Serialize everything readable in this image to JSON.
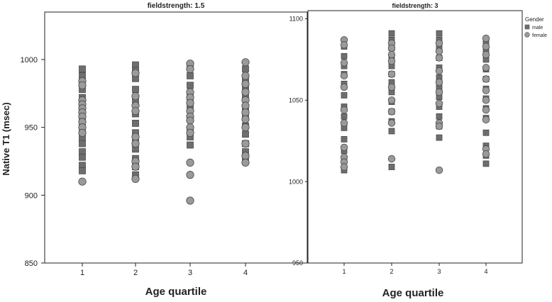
{
  "chart_data": [
    {
      "type": "scatter",
      "title": "fieldstrength: 1.5",
      "xlabel": "Age quartile",
      "ylabel": "Native T1 (msec)",
      "categories": [
        "1",
        "2",
        "3",
        "4"
      ],
      "ylim": [
        850,
        1035
      ],
      "yticks": [
        "850",
        "900",
        "950",
        "1000"
      ],
      "grid": false,
      "series": [
        {
          "name": "male",
          "marker": "square",
          "color": "#6e6e6e",
          "points": [
            {
              "x": "1",
              "y": [
                993,
                988,
                978,
                972,
                965,
                958,
                950,
                942,
                938,
                932,
                928,
                922,
                918
              ]
            },
            {
              "x": "2",
              "y": [
                996,
                992,
                986,
                978,
                969,
                960,
                953,
                946,
                940,
                934,
                927,
                921,
                915
              ]
            },
            {
              "x": "3",
              "y": [
                994,
                988,
                981,
                972,
                965,
                957,
                949,
                943,
                937
              ]
            },
            {
              "x": "4",
              "y": [
                993,
                986,
                980,
                972,
                965,
                958,
                951,
                945,
                938,
                932,
                926
              ]
            }
          ]
        },
        {
          "name": "female",
          "marker": "circle",
          "color": "#9a9a9a",
          "points": [
            {
              "x": "1",
              "y": [
                984,
                981,
                970,
                967,
                964,
                961,
                958,
                954,
                950,
                946,
                910
              ]
            },
            {
              "x": "2",
              "y": [
                990,
                973,
                966,
                962,
                943,
                938,
                925,
                921,
                912
              ]
            },
            {
              "x": "3",
              "y": [
                997,
                993,
                976,
                972,
                968,
                962,
                958,
                955,
                950,
                946,
                924,
                915,
                896
              ]
            },
            {
              "x": "4",
              "y": [
                998,
                988,
                982,
                976,
                970,
                966,
                961,
                956,
                950,
                938,
                929,
                924
              ]
            }
          ]
        }
      ]
    },
    {
      "type": "scatter",
      "title": "fieldstrength: 3",
      "xlabel": "Age quartile",
      "ylabel": "",
      "categories": [
        "1",
        "2",
        "3",
        "4"
      ],
      "ylim": [
        950,
        1105
      ],
      "yticks": [
        "950",
        "1000",
        "1050",
        "1100"
      ],
      "grid": false,
      "legend": {
        "title": "Gender",
        "placement": "top-right",
        "entries": [
          "male",
          "female"
        ]
      },
      "series": [
        {
          "name": "male",
          "marker": "square",
          "color": "#6e6e6e",
          "points": [
            {
              "x": "1",
              "y": [
                1083,
                1077,
                1071,
                1066,
                1060,
                1053,
                1046,
                1040,
                1033,
                1026,
                1019,
                1013,
                1007
              ]
            },
            {
              "x": "2",
              "y": [
                1091,
                1087,
                1082,
                1077,
                1071,
                1066,
                1061,
                1055,
                1049,
                1043,
                1037,
                1031,
                1009
              ]
            },
            {
              "x": "3",
              "y": [
                1091,
                1087,
                1082,
                1076,
                1070,
                1064,
                1058,
                1052,
                1046,
                1040,
                1034,
                1027
              ]
            },
            {
              "x": "4",
              "y": [
                1085,
                1080,
                1075,
                1069,
                1063,
                1057,
                1051,
                1045,
                1039,
                1030,
                1022,
                1016,
                1011
              ]
            }
          ]
        },
        {
          "name": "female",
          "marker": "circle",
          "color": "#9a9a9a",
          "points": [
            {
              "x": "1",
              "y": [
                1087,
                1084,
                1073,
                1065,
                1058,
                1044,
                1036,
                1021,
                1015,
                1012,
                1009
              ]
            },
            {
              "x": "2",
              "y": [
                1085,
                1082,
                1078,
                1074,
                1066,
                1058,
                1050,
                1043,
                1036,
                1014
              ]
            },
            {
              "x": "3",
              "y": [
                1085,
                1080,
                1076,
                1068,
                1061,
                1055,
                1048,
                1036,
                1034,
                1007
              ]
            },
            {
              "x": "4",
              "y": [
                1088,
                1083,
                1078,
                1070,
                1063,
                1056,
                1050,
                1044,
                1038,
                1020,
                1017
              ]
            }
          ]
        }
      ]
    }
  ]
}
